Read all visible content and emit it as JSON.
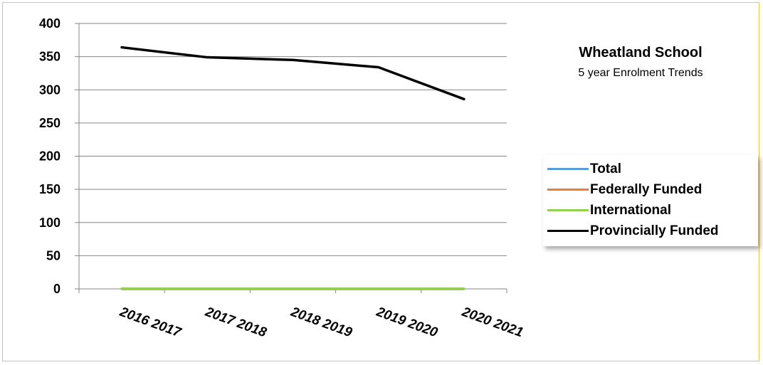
{
  "chart_data": {
    "type": "line",
    "title": "Wheatland School",
    "subtitle": "5 year Enrolment Trends",
    "categories": [
      "2016 2017",
      "2017 2018",
      "2018 2019",
      "2019 2020",
      "2020 2021"
    ],
    "ylim": [
      0,
      400
    ],
    "yticks": [
      0,
      50,
      100,
      150,
      200,
      250,
      300,
      350,
      400
    ],
    "grid": true,
    "legend_position": "right",
    "series": [
      {
        "name": "Total",
        "color": "#5b9bd5",
        "values": [
          0,
          0,
          0,
          0,
          0
        ]
      },
      {
        "name": "Federally Funded",
        "color": "#ed7d31",
        "values": [
          0,
          0,
          0,
          0,
          0
        ]
      },
      {
        "name": "International",
        "color": "#92d050",
        "values": [
          0,
          0,
          0,
          0,
          0
        ]
      },
      {
        "name": "Provincially Funded",
        "color": "#000000",
        "values": [
          364,
          349,
          345,
          334,
          286
        ]
      }
    ]
  }
}
